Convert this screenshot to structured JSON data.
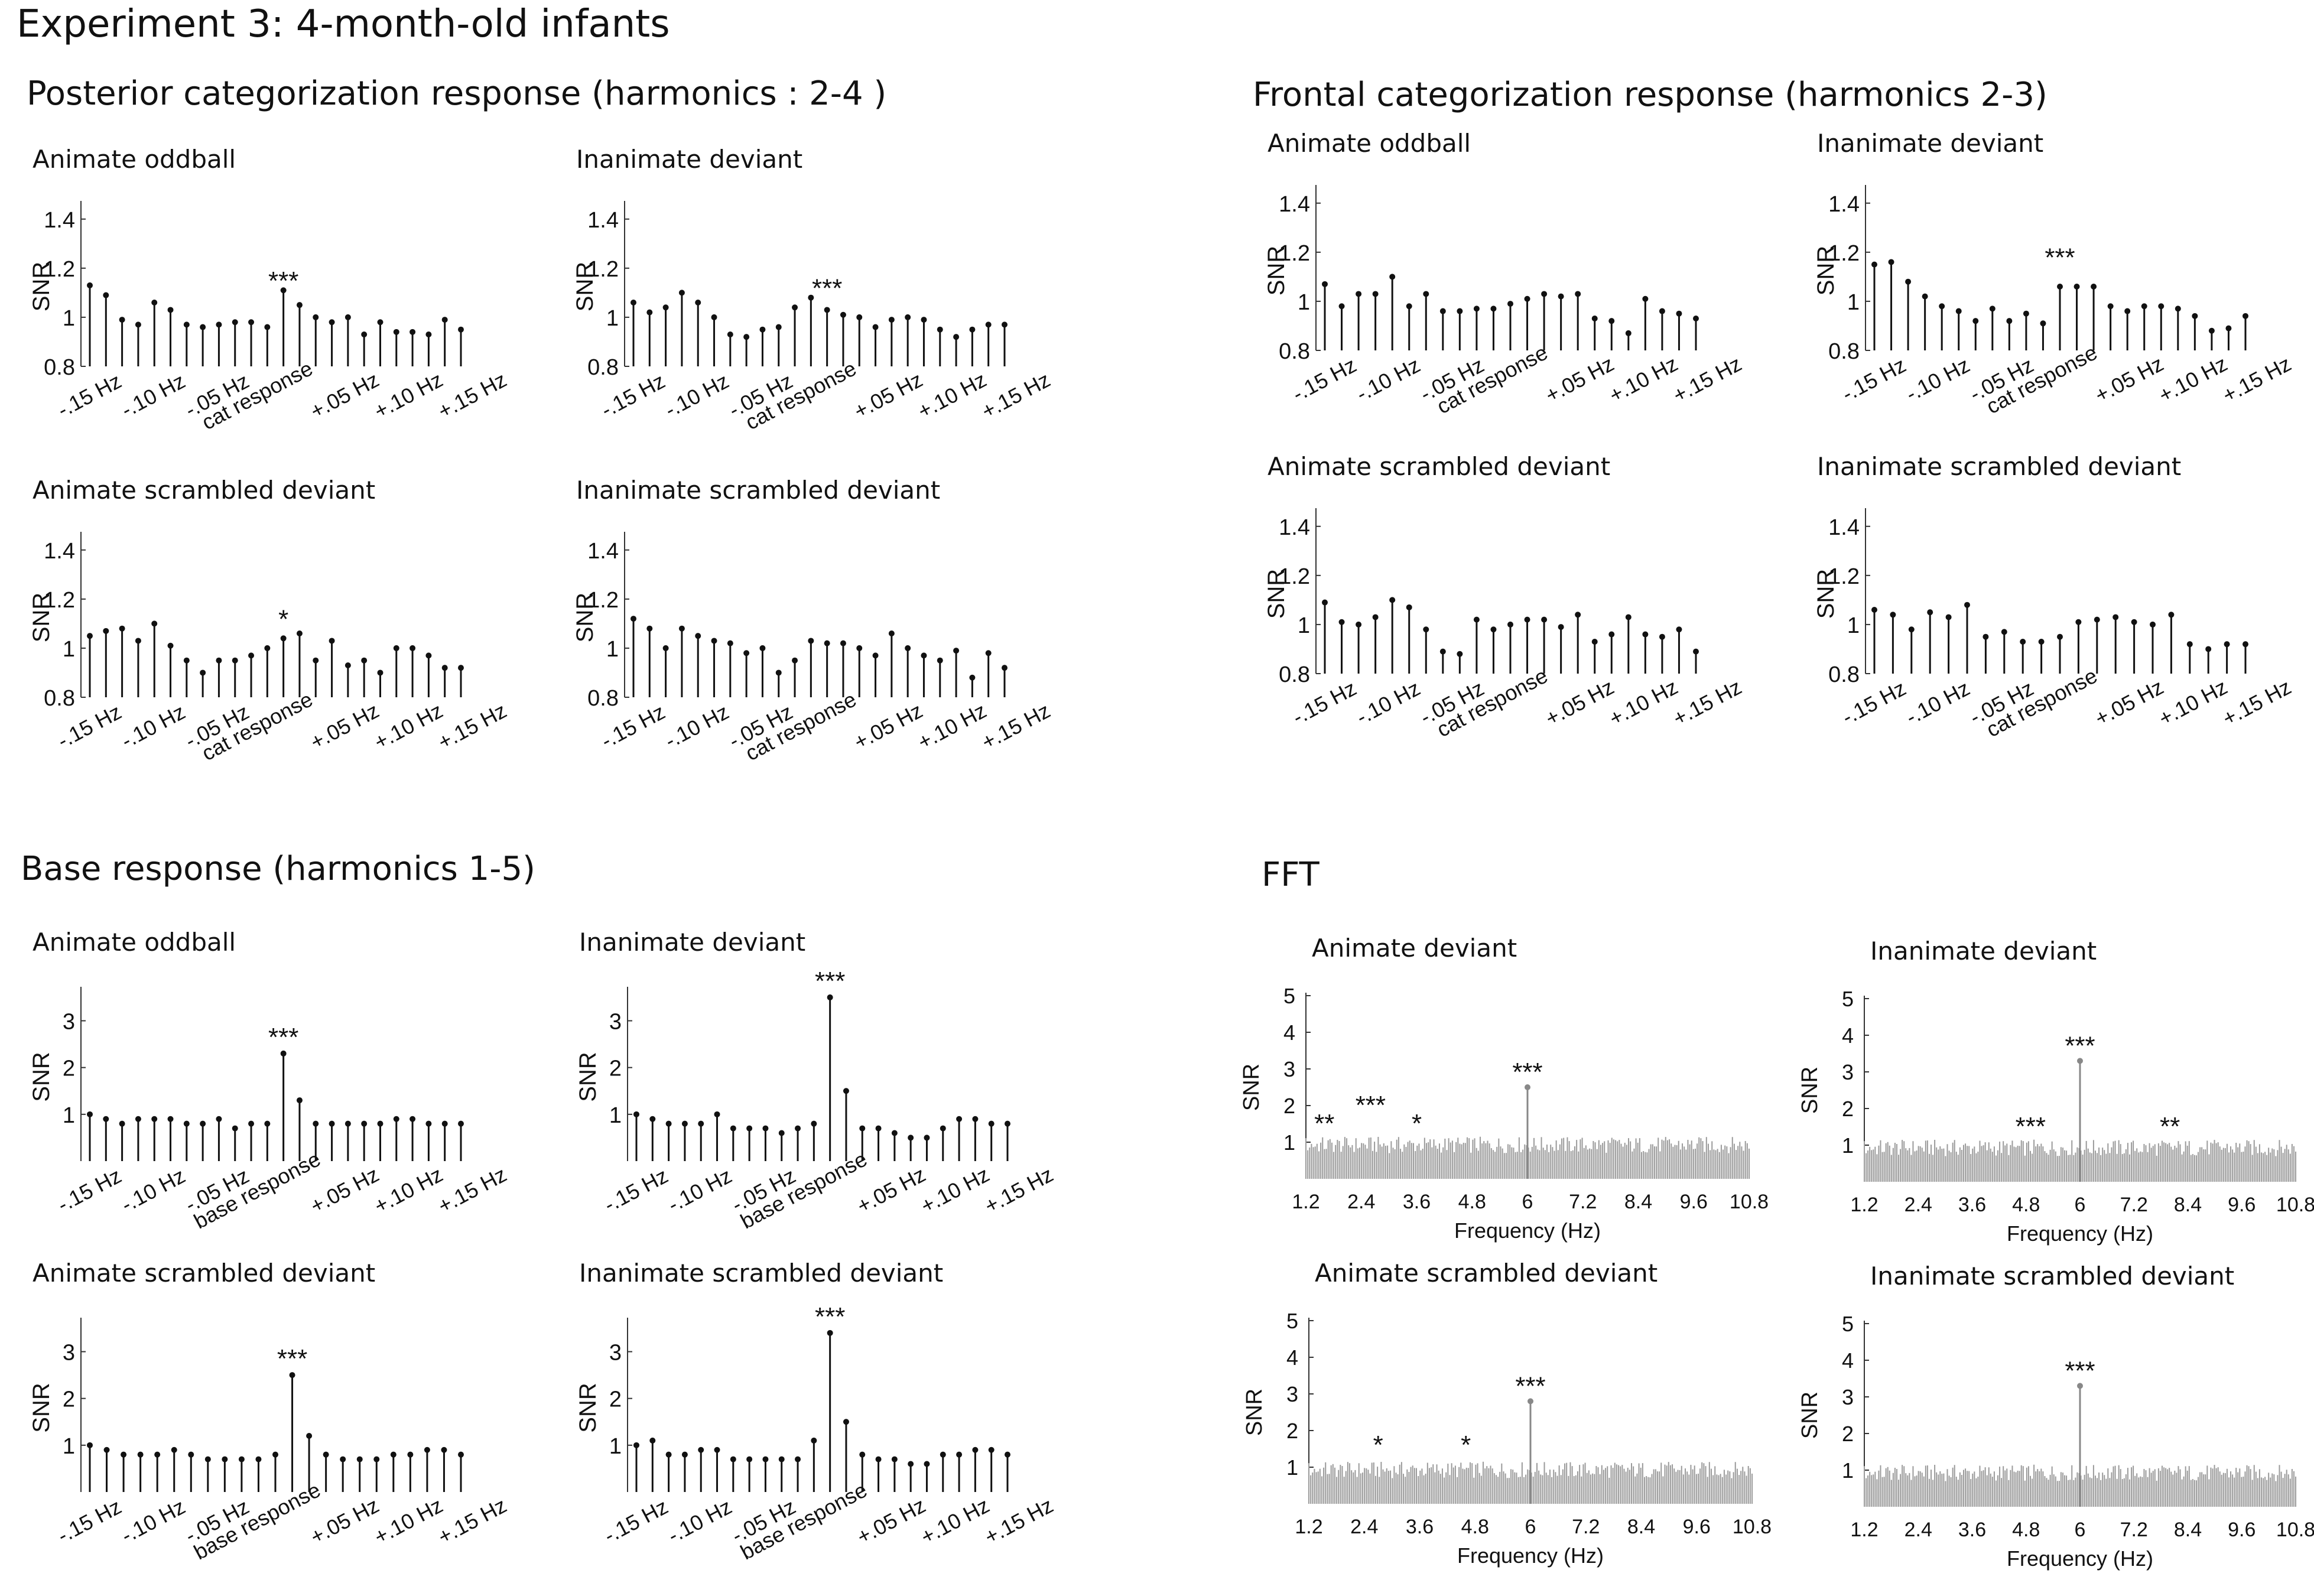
{
  "figure": {
    "title": "Experiment 3:  4-month-old infants"
  },
  "sections": {
    "posterior": "Posterior categorization response (harmonics : 2-4 )",
    "frontal": "Frontal categorization response (harmonics  2-3)",
    "base": "Base response (harmonics  1-5)",
    "fft": "FFT"
  },
  "colors": {
    "axis": "#333333",
    "stem": "#111111",
    "fft_bars": "#9a9a9a",
    "fft_peak": "#888888"
  },
  "chart_data": [
    {
      "id": "pa1",
      "type": "bar",
      "title": "Animate oddball",
      "ylabel": "SNR",
      "ylim": [
        0.8,
        1.45
      ],
      "yticks": [
        0.8,
        1,
        1.2,
        1.4
      ],
      "xticklabels": [
        "-.15 Hz",
        "-.10 Hz",
        "-.05 Hz",
        "cat response",
        "+.05 Hz",
        "+.10 Hz",
        "+.15 Hz"
      ],
      "values": [
        1.13,
        1.09,
        0.99,
        0.97,
        1.06,
        1.03,
        0.97,
        0.96,
        0.97,
        0.98,
        0.98,
        0.96,
        1.11,
        1.05,
        1.0,
        0.98,
        1.0,
        0.93,
        0.98,
        0.94,
        0.94,
        0.93,
        0.99,
        0.95
      ],
      "annotation": "***"
    },
    {
      "id": "pi1",
      "type": "bar",
      "title": "Inanimate deviant",
      "ylabel": "SNR",
      "ylim": [
        0.8,
        1.45
      ],
      "yticks": [
        0.8,
        1,
        1.2,
        1.4
      ],
      "xticklabels": [
        "-.15 Hz",
        "-.10 Hz",
        "-.05 Hz",
        "cat response",
        "+.05 Hz",
        "+.10 Hz",
        "+.15 Hz"
      ],
      "values": [
        1.06,
        1.02,
        1.04,
        1.1,
        1.06,
        1.0,
        0.93,
        0.92,
        0.95,
        0.96,
        1.04,
        1.08,
        1.03,
        1.01,
        1.0,
        0.96,
        0.99,
        1.0,
        0.99,
        0.95,
        0.92,
        0.95,
        0.97,
        0.97
      ],
      "annotation": "***"
    },
    {
      "id": "pa2",
      "type": "bar",
      "title": "Animate scrambled deviant",
      "ylabel": "SNR",
      "ylim": [
        0.8,
        1.45
      ],
      "yticks": [
        0.8,
        1,
        1.2,
        1.4
      ],
      "xticklabels": [
        "-.15 Hz",
        "-.10 Hz",
        "-.05 Hz",
        "cat response",
        "+.05 Hz",
        "+.10 Hz",
        "+.15 Hz"
      ],
      "values": [
        1.05,
        1.07,
        1.08,
        1.03,
        1.1,
        1.01,
        0.95,
        0.9,
        0.95,
        0.95,
        0.97,
        1.0,
        1.04,
        1.06,
        0.95,
        1.03,
        0.93,
        0.95,
        0.9,
        1.0,
        1.0,
        0.97,
        0.92,
        0.92
      ],
      "annotation": "*"
    },
    {
      "id": "pi2",
      "type": "bar",
      "title": "Inanimate scrambled deviant",
      "ylabel": "SNR",
      "ylim": [
        0.8,
        1.45
      ],
      "yticks": [
        0.8,
        1,
        1.2,
        1.4
      ],
      "xticklabels": [
        "-.15 Hz",
        "-.10 Hz",
        "-.05 Hz",
        "cat response",
        "+.05 Hz",
        "+.10 Hz",
        "+.15 Hz"
      ],
      "values": [
        1.12,
        1.08,
        1.0,
        1.08,
        1.05,
        1.03,
        1.02,
        0.98,
        1.0,
        0.9,
        0.95,
        1.03,
        1.02,
        1.02,
        1.0,
        0.97,
        1.06,
        1.0,
        0.97,
        0.95,
        0.99,
        0.88,
        0.98,
        0.92
      ],
      "annotation": ""
    },
    {
      "id": "fa1",
      "type": "bar",
      "title": "Animate oddball",
      "ylabel": "SNR",
      "ylim": [
        0.8,
        1.45
      ],
      "yticks": [
        0.8,
        1,
        1.2,
        1.4
      ],
      "xticklabels": [
        "-.15 Hz",
        "-.10 Hz",
        "-.05 Hz",
        "cat response",
        "+.05 Hz",
        "+.10 Hz",
        "+.15 Hz"
      ],
      "values": [
        1.07,
        0.98,
        1.03,
        1.03,
        1.1,
        0.98,
        1.03,
        0.96,
        0.96,
        0.97,
        0.97,
        0.99,
        1.01,
        1.03,
        1.02,
        1.03,
        0.93,
        0.92,
        0.87,
        1.01,
        0.96,
        0.95,
        0.93
      ],
      "annotation": ""
    },
    {
      "id": "fi1",
      "type": "bar",
      "title": "Inanimate deviant",
      "ylabel": "SNR",
      "ylim": [
        0.8,
        1.45
      ],
      "yticks": [
        0.8,
        1,
        1.2,
        1.4
      ],
      "xticklabels": [
        "-.15 Hz",
        "-.10 Hz",
        "-.05 Hz",
        "cat response",
        "+.05 Hz",
        "+.10 Hz",
        "+.15 Hz"
      ],
      "values": [
        1.15,
        1.16,
        1.08,
        1.02,
        0.98,
        0.96,
        0.92,
        0.97,
        0.92,
        0.95,
        0.91,
        1.06,
        1.06,
        1.06,
        0.98,
        0.96,
        0.98,
        0.98,
        0.97,
        0.94,
        0.88,
        0.89,
        0.94
      ],
      "annotation": "***"
    },
    {
      "id": "fa2",
      "type": "bar",
      "title": "Animate scrambled deviant",
      "ylabel": "SNR",
      "ylim": [
        0.8,
        1.45
      ],
      "yticks": [
        0.8,
        1,
        1.2,
        1.4
      ],
      "xticklabels": [
        "-.15 Hz",
        "-.10 Hz",
        "-.05 Hz",
        "cat response",
        "+.05 Hz",
        "+.10 Hz",
        "+.15 Hz"
      ],
      "values": [
        1.09,
        1.01,
        1.0,
        1.03,
        1.1,
        1.07,
        0.98,
        0.89,
        0.88,
        1.02,
        0.98,
        1.0,
        1.02,
        1.02,
        0.99,
        1.04,
        0.93,
        0.96,
        1.03,
        0.96,
        0.95,
        0.98,
        0.89
      ],
      "annotation": ""
    },
    {
      "id": "fi2",
      "type": "bar",
      "title": "Inanimate scrambled deviant",
      "ylabel": "SNR",
      "ylim": [
        0.8,
        1.45
      ],
      "yticks": [
        0.8,
        1,
        1.2,
        1.4
      ],
      "xticklabels": [
        "-.15 Hz",
        "-.10 Hz",
        "-.05 Hz",
        "cat response",
        "+.05 Hz",
        "+.10 Hz",
        "+.15 Hz"
      ],
      "values": [
        1.06,
        1.04,
        0.98,
        1.05,
        1.03,
        1.08,
        0.95,
        0.97,
        0.93,
        0.93,
        0.95,
        1.01,
        1.02,
        1.03,
        1.01,
        1.0,
        1.04,
        0.92,
        0.9,
        0.92,
        0.92
      ],
      "annotation": ""
    },
    {
      "id": "ba1",
      "type": "bar",
      "title": "Animate oddball",
      "ylabel": "SNR",
      "ylim": [
        0,
        3.6
      ],
      "yticks": [
        1,
        2,
        3
      ],
      "xticklabels": [
        "-.15 Hz",
        "-.10 Hz",
        "-.05 Hz",
        "base response",
        "+.05 Hz",
        "+.10 Hz",
        "+.15 Hz"
      ],
      "values": [
        1.0,
        0.9,
        0.8,
        0.9,
        0.9,
        0.9,
        0.8,
        0.8,
        0.9,
        0.7,
        0.8,
        0.8,
        2.3,
        1.3,
        0.8,
        0.8,
        0.8,
        0.8,
        0.8,
        0.9,
        0.9,
        0.8,
        0.8,
        0.8
      ],
      "annotation": "***"
    },
    {
      "id": "bi1",
      "type": "bar",
      "title": "Inanimate deviant",
      "ylabel": "SNR",
      "ylim": [
        0,
        3.6
      ],
      "yticks": [
        1,
        2,
        3
      ],
      "xticklabels": [
        "-.15 Hz",
        "-.10 Hz",
        "-.05 Hz",
        "base response",
        "+.05 Hz",
        "+.10 Hz",
        "+.15 Hz"
      ],
      "values": [
        1.0,
        0.9,
        0.8,
        0.8,
        0.8,
        1.0,
        0.7,
        0.7,
        0.7,
        0.6,
        0.7,
        0.8,
        3.5,
        1.5,
        0.7,
        0.7,
        0.6,
        0.5,
        0.5,
        0.7,
        0.9,
        0.9,
        0.8,
        0.8
      ],
      "annotation": "***"
    },
    {
      "id": "ba2",
      "type": "bar",
      "title": "Animate scrambled deviant",
      "ylabel": "SNR",
      "ylim": [
        0,
        3.6
      ],
      "yticks": [
        1,
        2,
        3
      ],
      "xticklabels": [
        "-.15 Hz",
        "-.10 Hz",
        "-.05 Hz",
        "base response",
        "+.05 Hz",
        "+.10 Hz",
        "+.15 Hz"
      ],
      "values": [
        1.0,
        0.9,
        0.8,
        0.8,
        0.8,
        0.9,
        0.8,
        0.7,
        0.7,
        0.7,
        0.7,
        0.8,
        2.5,
        1.2,
        0.8,
        0.7,
        0.7,
        0.7,
        0.8,
        0.8,
        0.9,
        0.9,
        0.8
      ],
      "annotation": "***"
    },
    {
      "id": "bi2",
      "type": "bar",
      "title": "Inanimate scrambled deviant",
      "ylabel": "SNR",
      "ylim": [
        0,
        3.6
      ],
      "yticks": [
        1,
        2,
        3
      ],
      "xticklabels": [
        "-.15 Hz",
        "-.10 Hz",
        "-.05 Hz",
        "base response",
        "+.05 Hz",
        "+.10 Hz",
        "+.15 Hz"
      ],
      "values": [
        1.0,
        1.1,
        0.8,
        0.8,
        0.9,
        0.9,
        0.7,
        0.7,
        0.7,
        0.7,
        0.7,
        1.1,
        3.4,
        1.5,
        0.8,
        0.7,
        0.7,
        0.6,
        0.6,
        0.8,
        0.8,
        0.9,
        0.9,
        0.8
      ],
      "annotation": "***"
    },
    {
      "id": "fft1",
      "type": "bar",
      "title": "Animate deviant",
      "ylabel": "SNR",
      "xlabel": "Frequency (Hz)",
      "xlim": [
        1.2,
        10.8
      ],
      "ylim": [
        0,
        5
      ],
      "yticks": [
        1,
        2,
        3,
        4,
        5
      ],
      "xticks": [
        1.2,
        2.4,
        3.6,
        4.8,
        6,
        7.2,
        8.4,
        9.6,
        10.8
      ],
      "peak": {
        "x": 6.0,
        "y": 2.5
      },
      "annotations": [
        {
          "x": 1.6,
          "y": 1.5,
          "label": "**"
        },
        {
          "x": 2.6,
          "y": 2.0,
          "label": "***"
        },
        {
          "x": 3.6,
          "y": 1.5,
          "label": "*"
        },
        {
          "x": 6.0,
          "y": 2.9,
          "label": "***"
        }
      ]
    },
    {
      "id": "fft2",
      "type": "bar",
      "title": "Inanimate deviant",
      "ylabel": "SNR",
      "xlabel": "Frequency (Hz)",
      "xlim": [
        1.2,
        10.8
      ],
      "ylim": [
        0,
        5
      ],
      "yticks": [
        1,
        2,
        3,
        4,
        5
      ],
      "xticks": [
        1.2,
        2.4,
        3.6,
        4.8,
        6,
        7.2,
        8.4,
        9.6,
        10.8
      ],
      "peak": {
        "x": 6.0,
        "y": 3.3
      },
      "annotations": [
        {
          "x": 4.9,
          "y": 1.5,
          "label": "***"
        },
        {
          "x": 8.0,
          "y": 1.5,
          "label": "**"
        },
        {
          "x": 6.0,
          "y": 3.7,
          "label": "***"
        }
      ]
    },
    {
      "id": "fft3",
      "type": "bar",
      "title": "Animate scrambled deviant",
      "ylabel": "SNR",
      "xlabel": "Frequency (Hz)",
      "xlim": [
        1.2,
        10.8
      ],
      "ylim": [
        0,
        5
      ],
      "yticks": [
        1,
        2,
        3,
        4,
        5
      ],
      "xticks": [
        1.2,
        2.4,
        3.6,
        4.8,
        6,
        7.2,
        8.4,
        9.6,
        10.8
      ],
      "peak": {
        "x": 6.0,
        "y": 2.8
      },
      "annotations": [
        {
          "x": 2.7,
          "y": 1.6,
          "label": "*"
        },
        {
          "x": 4.6,
          "y": 1.6,
          "label": "*"
        },
        {
          "x": 6.0,
          "y": 3.2,
          "label": "***"
        }
      ]
    },
    {
      "id": "fft4",
      "type": "bar",
      "title": "Inanimate scrambled  deviant",
      "ylabel": "SNR",
      "xlabel": "Frequency (Hz)",
      "xlim": [
        1.2,
        10.8
      ],
      "ylim": [
        0,
        5
      ],
      "yticks": [
        1,
        2,
        3,
        4,
        5
      ],
      "xticks": [
        1.2,
        2.4,
        3.6,
        4.8,
        6,
        7.2,
        8.4,
        9.6,
        10.8
      ],
      "peak": {
        "x": 6.0,
        "y": 3.3
      },
      "annotations": [
        {
          "x": 6.0,
          "y": 3.7,
          "label": "***"
        }
      ]
    }
  ]
}
